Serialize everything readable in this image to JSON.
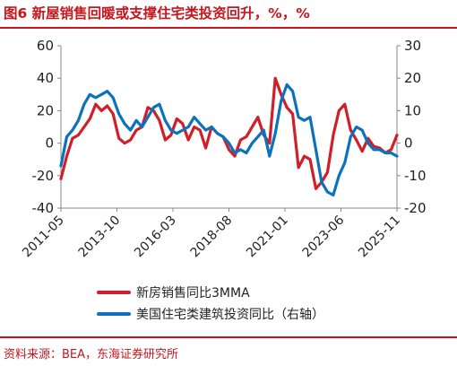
{
  "title": "图6  新屋销售回暖或支撑住宅类投资回升，%，%",
  "source": "资料来源：BEA，东海证券研究所",
  "colors": {
    "accent": "#c5161d",
    "series_red": "#d11f2a",
    "series_blue": "#0d72bd",
    "grid": "#d0d0d0"
  },
  "chart_data": {
    "type": "line",
    "x_tick_labels": [
      "2011-05",
      "2013-10",
      "2016-03",
      "2018-08",
      "2021-01",
      "2023-06",
      "2025-11"
    ],
    "x_range": [
      "2011-05",
      "2025-11"
    ],
    "y_left": {
      "ticks": [
        60,
        40,
        20,
        0,
        -20,
        -40
      ],
      "range": [
        -40,
        60
      ]
    },
    "y_right": {
      "ticks": [
        30,
        20,
        10,
        0,
        -10,
        -20
      ],
      "range": [
        -20,
        30
      ]
    },
    "series": [
      {
        "name": "新房销售同比3MMA",
        "axis": "left",
        "color": "#d11f2a",
        "points": [
          [
            "2011-05",
            -22
          ],
          [
            "2011-08",
            -8
          ],
          [
            "2011-11",
            3
          ],
          [
            "2012-02",
            5
          ],
          [
            "2012-05",
            10
          ],
          [
            "2012-08",
            15
          ],
          [
            "2012-11",
            24
          ],
          [
            "2013-02",
            20
          ],
          [
            "2013-05",
            23
          ],
          [
            "2013-08",
            18
          ],
          [
            "2013-11",
            3
          ],
          [
            "2014-02",
            0
          ],
          [
            "2014-05",
            2
          ],
          [
            "2014-08",
            8
          ],
          [
            "2014-11",
            10
          ],
          [
            "2015-02",
            22
          ],
          [
            "2015-05",
            20
          ],
          [
            "2015-08",
            14
          ],
          [
            "2015-11",
            2
          ],
          [
            "2016-02",
            5
          ],
          [
            "2016-05",
            15
          ],
          [
            "2016-08",
            12
          ],
          [
            "2016-11",
            2
          ],
          [
            "2017-02",
            10
          ],
          [
            "2017-05",
            8
          ],
          [
            "2017-08",
            -3
          ],
          [
            "2017-11",
            10
          ],
          [
            "2018-02",
            6
          ],
          [
            "2018-05",
            4
          ],
          [
            "2018-08",
            -4
          ],
          [
            "2018-11",
            -8
          ],
          [
            "2019-02",
            2
          ],
          [
            "2019-05",
            4
          ],
          [
            "2019-08",
            10
          ],
          [
            "2019-11",
            16
          ],
          [
            "2020-02",
            5
          ],
          [
            "2020-05",
            0
          ],
          [
            "2020-08",
            40
          ],
          [
            "2020-11",
            30
          ],
          [
            "2021-02",
            22
          ],
          [
            "2021-05",
            18
          ],
          [
            "2021-08",
            -15
          ],
          [
            "2021-11",
            -8
          ],
          [
            "2022-02",
            -10
          ],
          [
            "2022-05",
            -28
          ],
          [
            "2022-08",
            -24
          ],
          [
            "2022-11",
            -18
          ],
          [
            "2023-02",
            5
          ],
          [
            "2023-05",
            20
          ],
          [
            "2023-08",
            24
          ],
          [
            "2023-11",
            8
          ],
          [
            "2024-02",
            2
          ],
          [
            "2024-05",
            -5
          ],
          [
            "2024-08",
            3
          ],
          [
            "2024-11",
            -2
          ],
          [
            "2025-02",
            -3
          ],
          [
            "2025-05",
            -6
          ],
          [
            "2025-08",
            -4
          ],
          [
            "2025-11",
            5
          ]
        ]
      },
      {
        "name": "美国住宅类建筑投资同比（右轴）",
        "axis": "right",
        "color": "#0d72bd",
        "points": [
          [
            "2011-05",
            -7
          ],
          [
            "2011-08",
            2
          ],
          [
            "2011-11",
            4
          ],
          [
            "2012-02",
            7
          ],
          [
            "2012-05",
            12
          ],
          [
            "2012-08",
            15
          ],
          [
            "2012-11",
            14
          ],
          [
            "2013-02",
            15
          ],
          [
            "2013-05",
            16
          ],
          [
            "2013-08",
            14
          ],
          [
            "2013-11",
            9
          ],
          [
            "2014-02",
            6
          ],
          [
            "2014-05",
            4
          ],
          [
            "2014-08",
            7
          ],
          [
            "2014-11",
            5
          ],
          [
            "2015-02",
            8
          ],
          [
            "2015-05",
            11
          ],
          [
            "2015-08",
            12
          ],
          [
            "2015-11",
            7
          ],
          [
            "2016-02",
            4
          ],
          [
            "2016-05",
            3
          ],
          [
            "2016-08",
            4
          ],
          [
            "2016-11",
            5
          ],
          [
            "2017-02",
            8
          ],
          [
            "2017-05",
            6
          ],
          [
            "2017-08",
            4
          ],
          [
            "2017-11",
            5
          ],
          [
            "2018-02",
            3
          ],
          [
            "2018-05",
            2
          ],
          [
            "2018-08",
            0
          ],
          [
            "2018-11",
            -3
          ],
          [
            "2019-02",
            -2
          ],
          [
            "2019-05",
            -3
          ],
          [
            "2019-08",
            0
          ],
          [
            "2019-11",
            2
          ],
          [
            "2020-02",
            4
          ],
          [
            "2020-05",
            -4
          ],
          [
            "2020-08",
            3
          ],
          [
            "2020-11",
            13
          ],
          [
            "2021-02",
            18
          ],
          [
            "2021-05",
            16
          ],
          [
            "2021-08",
            8
          ],
          [
            "2021-11",
            7
          ],
          [
            "2022-02",
            8
          ],
          [
            "2022-05",
            -2
          ],
          [
            "2022-08",
            -12
          ],
          [
            "2022-11",
            -15
          ],
          [
            "2023-02",
            -16
          ],
          [
            "2023-05",
            -10
          ],
          [
            "2023-08",
            -6
          ],
          [
            "2023-11",
            2
          ],
          [
            "2024-02",
            5
          ],
          [
            "2024-05",
            4
          ],
          [
            "2024-08",
            0
          ],
          [
            "2024-11",
            -2
          ],
          [
            "2025-02",
            -2
          ],
          [
            "2025-05",
            -3
          ],
          [
            "2025-08",
            -3
          ],
          [
            "2025-11",
            -4
          ]
        ]
      }
    ]
  }
}
